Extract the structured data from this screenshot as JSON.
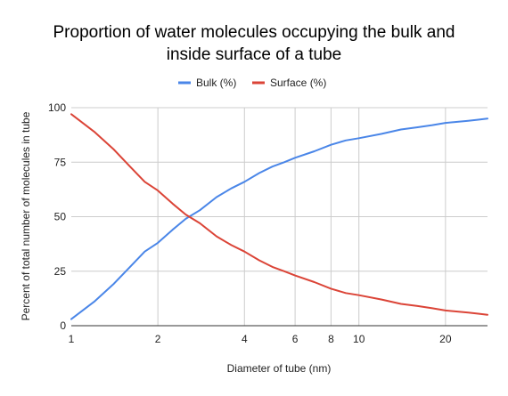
{
  "chart_data": {
    "type": "line",
    "title_lines": [
      "Proportion of water molecules occupying the bulk and",
      "inside surface of a tube"
    ],
    "xlabel": "Diameter of tube (nm)",
    "ylabel": "Percent of total number of molecules in tube",
    "x_scale": "log",
    "xlim": [
      1,
      28
    ],
    "ylim": [
      0,
      100
    ],
    "x_ticks": [
      1,
      2,
      4,
      6,
      8,
      10,
      20
    ],
    "x_tick_labels": [
      "1",
      "2",
      "4",
      "6",
      "8",
      "10",
      "20"
    ],
    "y_ticks": [
      0,
      25,
      50,
      75,
      100
    ],
    "y_tick_labels": [
      "0",
      "25",
      "50",
      "75",
      "100"
    ],
    "grid": true,
    "legend_position": "top",
    "x": [
      1,
      1.2,
      1.4,
      1.6,
      1.8,
      2,
      2.25,
      2.5,
      2.8,
      3.2,
      3.6,
      4,
      4.5,
      5,
      5.5,
      6,
      7,
      8,
      9,
      10,
      12,
      14,
      16,
      18,
      20,
      22,
      24,
      26,
      28
    ],
    "series": [
      {
        "name": "Bulk (%)",
        "color": "#4a86e8",
        "values": [
          3,
          11,
          19,
          27,
          34,
          38,
          44,
          49,
          53,
          59,
          63,
          66,
          70,
          73,
          75,
          77,
          80,
          83,
          85,
          86,
          88,
          90,
          91,
          92,
          93,
          93.5,
          94,
          94.5,
          95
        ]
      },
      {
        "name": "Surface (%)",
        "color": "#db4437",
        "values": [
          97,
          89,
          81,
          73,
          66,
          62,
          56,
          51,
          47,
          41,
          37,
          34,
          30,
          27,
          25,
          23,
          20,
          17,
          15,
          14,
          12,
          10,
          9,
          8,
          7,
          6.5,
          6,
          5.5,
          5
        ]
      }
    ]
  }
}
